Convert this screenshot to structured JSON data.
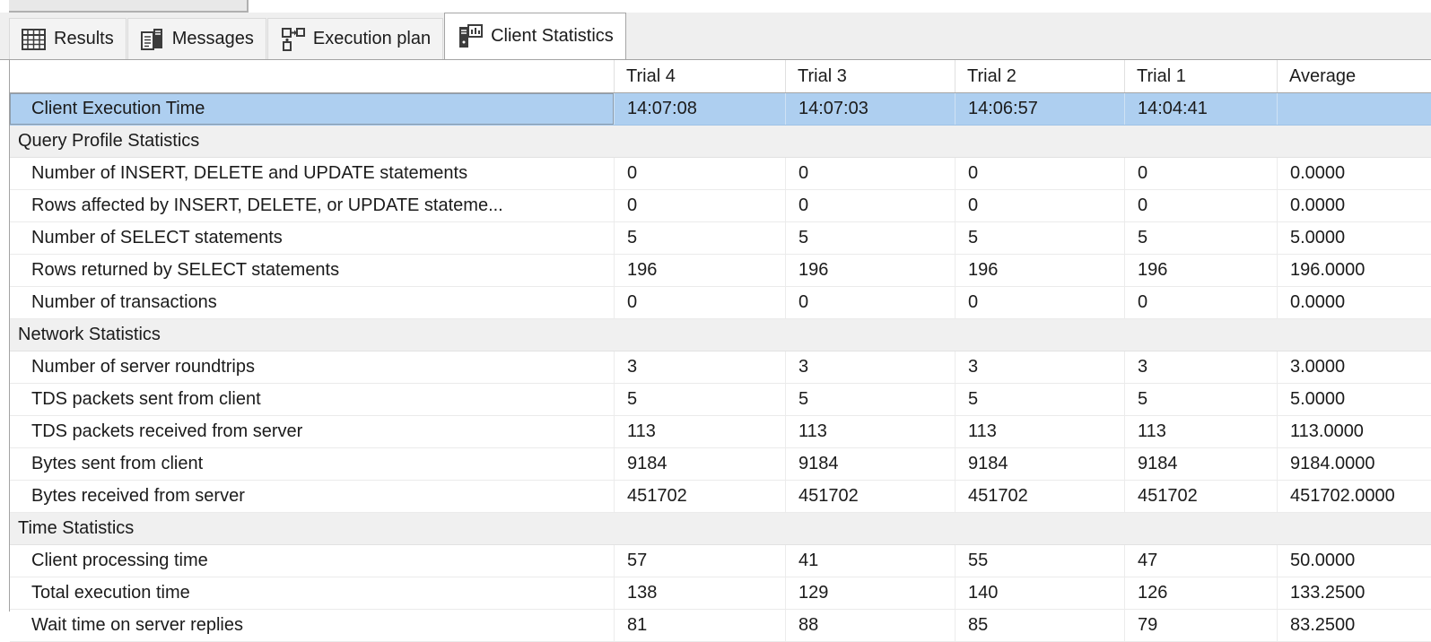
{
  "tabs": [
    {
      "label": "Results",
      "icon": "results-grid-icon",
      "selected": false
    },
    {
      "label": "Messages",
      "icon": "messages-icon",
      "selected": false
    },
    {
      "label": "Execution plan",
      "icon": "execution-plan-icon",
      "selected": false
    },
    {
      "label": "Client Statistics",
      "icon": "client-statistics-icon",
      "selected": true
    }
  ],
  "grid": {
    "columns": [
      "",
      "Trial 4",
      "Trial 3",
      "Trial 2",
      "Trial 1",
      "Average"
    ],
    "rows": [
      {
        "type": "selected",
        "label": "Client Execution Time",
        "cells": [
          {
            "value": "14:07:08"
          },
          {
            "value": "14:07:03"
          },
          {
            "value": "14:06:57"
          },
          {
            "value": "14:04:41"
          },
          {
            "value": ""
          }
        ]
      },
      {
        "type": "section",
        "label": "Query Profile Statistics"
      },
      {
        "type": "data",
        "label": "Number of INSERT, DELETE and UPDATE statements",
        "cells": [
          {
            "value": "0"
          },
          {
            "trend": "same",
            "value": "0"
          },
          {
            "trend": "same",
            "value": "0"
          },
          {
            "trend": "same",
            "value": "0"
          },
          {
            "trend": "same",
            "value": "0.0000"
          }
        ]
      },
      {
        "type": "data",
        "label": "Rows affected by INSERT, DELETE, or UPDATE stateme...",
        "cells": [
          {
            "value": "0"
          },
          {
            "trend": "same",
            "value": "0"
          },
          {
            "trend": "same",
            "value": "0"
          },
          {
            "trend": "same",
            "value": "0"
          },
          {
            "trend": "same",
            "value": "0.0000"
          }
        ]
      },
      {
        "type": "data",
        "label": "Number of SELECT statements",
        "cells": [
          {
            "value": "5"
          },
          {
            "trend": "same",
            "value": "5"
          },
          {
            "trend": "same",
            "value": "5"
          },
          {
            "trend": "same",
            "value": "5"
          },
          {
            "trend": "same",
            "value": "5.0000"
          }
        ]
      },
      {
        "type": "data",
        "label": "Rows returned by SELECT statements",
        "cells": [
          {
            "value": "196"
          },
          {
            "trend": "same",
            "value": "196"
          },
          {
            "trend": "same",
            "value": "196"
          },
          {
            "trend": "same",
            "value": "196"
          },
          {
            "trend": "same",
            "value": "196.0000"
          }
        ]
      },
      {
        "type": "data",
        "label": "Number of transactions",
        "cells": [
          {
            "value": "0"
          },
          {
            "trend": "same",
            "value": "0"
          },
          {
            "trend": "same",
            "value": "0"
          },
          {
            "trend": "same",
            "value": "0"
          },
          {
            "trend": "same",
            "value": "0.0000"
          }
        ]
      },
      {
        "type": "section",
        "label": "Network Statistics"
      },
      {
        "type": "data",
        "label": "Number of server roundtrips",
        "cells": [
          {
            "value": "3"
          },
          {
            "trend": "same",
            "value": "3"
          },
          {
            "trend": "same",
            "value": "3"
          },
          {
            "trend": "same",
            "value": "3"
          },
          {
            "trend": "same",
            "value": "3.0000"
          }
        ]
      },
      {
        "type": "data",
        "label": "TDS packets sent from client",
        "cells": [
          {
            "value": "5"
          },
          {
            "trend": "same",
            "value": "5"
          },
          {
            "trend": "same",
            "value": "5"
          },
          {
            "trend": "same",
            "value": "5"
          },
          {
            "trend": "same",
            "value": "5.0000"
          }
        ]
      },
      {
        "type": "data",
        "label": "TDS packets received from server",
        "cells": [
          {
            "value": "113"
          },
          {
            "trend": "same",
            "value": "113"
          },
          {
            "trend": "same",
            "value": "113"
          },
          {
            "trend": "same",
            "value": "113"
          },
          {
            "trend": "same",
            "value": "113.0000"
          }
        ]
      },
      {
        "type": "data",
        "label": "Bytes sent from client",
        "cells": [
          {
            "value": "9184"
          },
          {
            "trend": "same",
            "value": "9184"
          },
          {
            "trend": "same",
            "value": "9184"
          },
          {
            "trend": "same",
            "value": "9184"
          },
          {
            "trend": "same",
            "value": "9184.0000"
          }
        ]
      },
      {
        "type": "data",
        "label": "Bytes received from server",
        "cells": [
          {
            "value": "451702"
          },
          {
            "trend": "same",
            "value": "451702"
          },
          {
            "trend": "same",
            "value": "451702"
          },
          {
            "trend": "same",
            "value": "451702"
          },
          {
            "trend": "same",
            "value": "451702.0000"
          }
        ]
      },
      {
        "type": "section",
        "label": "Time Statistics"
      },
      {
        "type": "data",
        "label": "Client processing time",
        "cells": [
          {
            "value": "57"
          },
          {
            "trend": "up",
            "value": "41"
          },
          {
            "trend": "down",
            "value": "55"
          },
          {
            "trend": "up",
            "value": "47"
          },
          {
            "trend": "same",
            "value": "50.0000"
          }
        ]
      },
      {
        "type": "data",
        "label": "Total execution time",
        "cells": [
          {
            "value": "138"
          },
          {
            "trend": "up",
            "value": "129"
          },
          {
            "trend": "down",
            "value": "140"
          },
          {
            "trend": "up",
            "value": "126"
          },
          {
            "trend": "same",
            "value": "133.2500"
          }
        ]
      },
      {
        "type": "data",
        "label": "Wait time on server replies",
        "cells": [
          {
            "value": "81"
          },
          {
            "trend": "down",
            "value": "88"
          },
          {
            "trend": "up",
            "value": "85"
          },
          {
            "trend": "up",
            "value": "79"
          },
          {
            "trend": "same",
            "value": "83.2500"
          }
        ]
      }
    ]
  },
  "trend_glyphs": {
    "up": "↑",
    "down": "↓",
    "same": "→"
  },
  "colors": {
    "trend_up": "#c8382e",
    "trend_down": "#3b8d3f",
    "trend_same": "#1c1c1c",
    "selected_row_bg": "#aecff0",
    "selected_cell_border": "#8c9cab",
    "section_row_bg": "#f0f0f0",
    "tabbar_bg": "#efefef"
  }
}
